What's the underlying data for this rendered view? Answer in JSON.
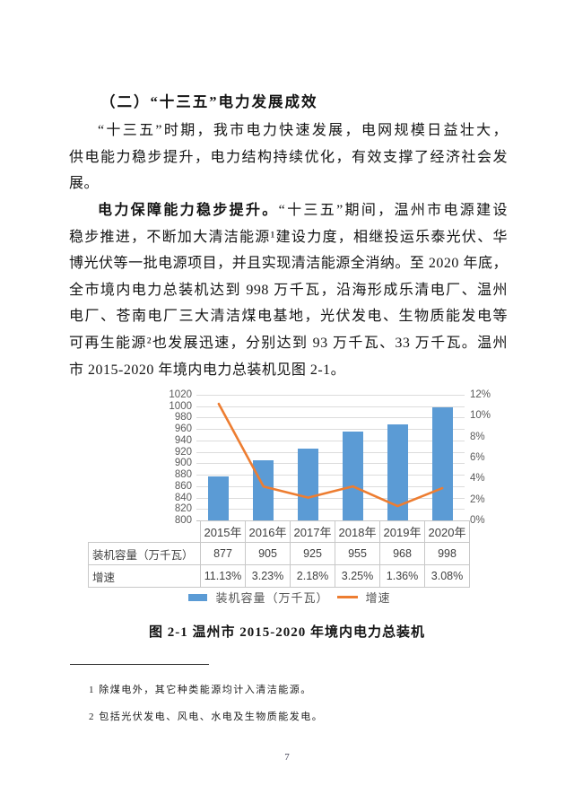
{
  "section": {
    "heading": "（二）“十三五”电力发展成效"
  },
  "paragraphs": {
    "p1": {
      "lines": [
        "“十三五”时期，我市电力快速发展，电网规模日益壮大，",
        "供电能力稳步提升，电力结构持续优化，有效支撑了经济社会发",
        "展。"
      ]
    },
    "p2": {
      "lead": "电力保障能力稳步提升。",
      "line1_rest": "“十三五”期间，温州市电源建设",
      "lines": [
        "稳步推进，不断加大清洁能源¹建设力度，相继投运乐泰光伏、华",
        "博光伏等一批电源项目，并且实现清洁能源全消纳。至 2020 年底，",
        "全市境内电力总装机达到 998 万千瓦，沿海形成乐清电厂、温州",
        "电厂、苍南电厂三大清洁煤电基地，光伏发电、生物质能发电等",
        "可再生能源²也发展迅速，分别达到 93 万千瓦、33 万千瓦。温州",
        "市 2015-2020 年境内电力总装机见图 2-1。"
      ]
    }
  },
  "chart_data": {
    "type": "bar+line",
    "categories": [
      "2015年",
      "2016年",
      "2017年",
      "2018年",
      "2019年",
      "2020年"
    ],
    "series": [
      {
        "name": "装机容量（万千瓦）",
        "type": "bar",
        "axis": "left",
        "values": [
          877,
          905,
          925,
          955,
          968,
          998
        ],
        "color": "#5b9bd5"
      },
      {
        "name": "增速",
        "type": "line",
        "axis": "right",
        "unit": "%",
        "values": [
          11.13,
          3.23,
          2.18,
          3.25,
          1.36,
          3.08
        ],
        "color": "#ed7d31"
      }
    ],
    "left_axis": {
      "min": 800,
      "max": 1020,
      "step": 20,
      "ticks": [
        "1020",
        "1000",
        "980",
        "960",
        "940",
        "920",
        "900",
        "880",
        "860",
        "840",
        "820",
        "800"
      ]
    },
    "right_axis": {
      "min": 0,
      "max": 12,
      "step": 2,
      "ticks": [
        "12%",
        "10%",
        "8%",
        "6%",
        "4%",
        "2%",
        "0%"
      ]
    },
    "grid": true,
    "legend_position": "bottom",
    "data_table_attached": true,
    "title": "图 2-1 温州市 2015-2020 年境内电力总装机"
  },
  "chart_table": {
    "col_headers": [
      "2015年",
      "2016年",
      "2017年",
      "2018年",
      "2019年",
      "2020年"
    ],
    "rows": [
      {
        "label": "装机容量（万千瓦）",
        "values": [
          "877",
          "905",
          "925",
          "955",
          "968",
          "998"
        ]
      },
      {
        "label": "增速",
        "values": [
          "11.13%",
          "3.23%",
          "2.18%",
          "3.25%",
          "1.36%",
          "3.08%"
        ]
      }
    ]
  },
  "legend": {
    "bar_label": "装机容量（万千瓦）",
    "line_label": "增速",
    "bar_color": "#5b9bd5",
    "line_color": "#ed7d31"
  },
  "caption": "图 2-1  温州市 2015-2020 年境内电力总装机",
  "footnotes": [
    "1 除煤电外，其它种类能源均计入清洁能源。",
    "2 包括光伏发电、风电、水电及生物质能发电。"
  ],
  "page": {
    "number": "7"
  }
}
